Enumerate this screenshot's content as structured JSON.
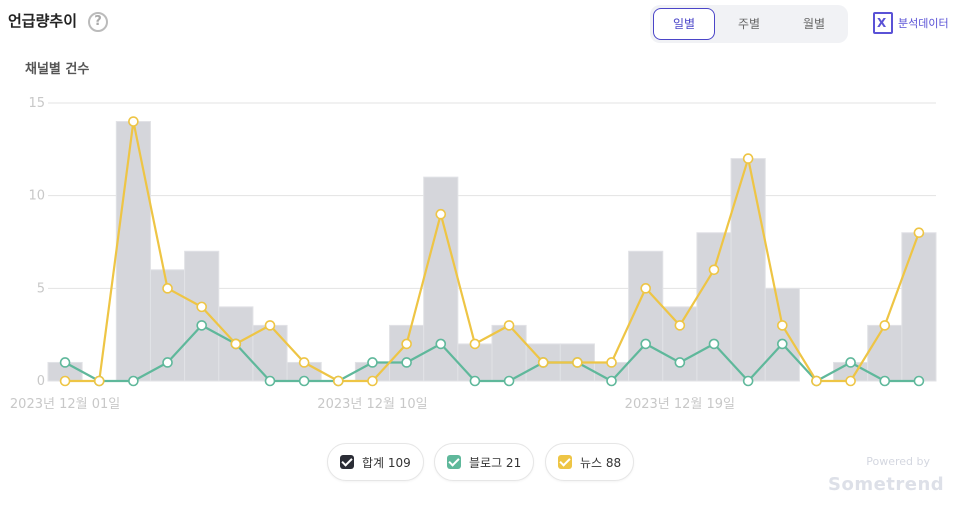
{
  "header": {
    "title": "언급량추이",
    "help_icon": "?",
    "tabs": [
      {
        "label": "일별",
        "active": true
      },
      {
        "label": "주별",
        "active": false
      },
      {
        "label": "월별",
        "active": false
      }
    ],
    "export_icon_glyph": "X",
    "export_label": "분석데이터"
  },
  "chart_data": {
    "type": "bar+line",
    "ylabel": "채널별 건수",
    "ylim": [
      0,
      15
    ],
    "yticks": [
      0,
      5,
      10,
      15
    ],
    "x_tick_labels": [
      "2023년 12월 01일",
      "2023년 12월 10일",
      "2023년 12월 19일"
    ],
    "x_tick_index": [
      0,
      9,
      18
    ],
    "series": [
      {
        "name": "합계",
        "type": "bar",
        "color": "#d5d6db",
        "values": [
          1,
          0,
          14,
          6,
          7,
          4,
          3,
          1,
          0,
          1,
          3,
          11,
          2,
          3,
          2,
          2,
          1,
          7,
          4,
          8,
          12,
          5,
          0,
          1,
          3,
          8
        ]
      },
      {
        "name": "블로그",
        "type": "line",
        "color": "#5fb89b",
        "values": [
          1,
          0,
          0,
          1,
          3,
          2,
          0,
          0,
          0,
          1,
          1,
          2,
          0,
          0,
          1,
          1,
          0,
          2,
          1,
          2,
          0,
          2,
          0,
          1,
          0,
          0
        ]
      },
      {
        "name": "뉴스",
        "type": "line",
        "color": "#eec545",
        "values": [
          0,
          0,
          14,
          5,
          4,
          2,
          3,
          1,
          0,
          0,
          2,
          9,
          2,
          3,
          1,
          1,
          1,
          5,
          3,
          6,
          12,
          3,
          0,
          0,
          3,
          8
        ]
      }
    ]
  },
  "legend": [
    {
      "label": "합계 109",
      "color": "#2b2d36"
    },
    {
      "label": "블로그 21",
      "color": "#5fb89b"
    },
    {
      "label": "뉴스 88",
      "color": "#eec545"
    }
  ],
  "branding": {
    "powered_by": "Powered by",
    "name": "Sometrend"
  }
}
